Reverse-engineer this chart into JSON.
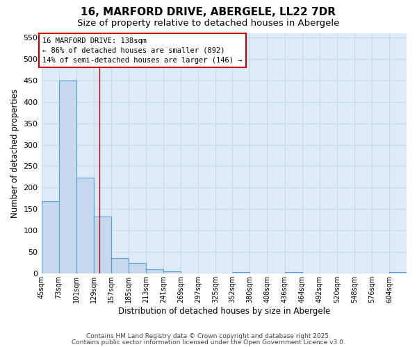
{
  "title1": "16, MARFORD DRIVE, ABERGELE, LL22 7DR",
  "title2": "Size of property relative to detached houses in Abergele",
  "xlabel": "Distribution of detached houses by size in Abergele",
  "ylabel": "Number of detached properties",
  "bins": [
    45,
    73,
    101,
    129,
    157,
    185,
    213,
    241,
    269,
    297,
    325,
    352,
    380,
    408,
    436,
    464,
    492,
    520,
    548,
    576,
    604
  ],
  "heights": [
    168,
    449,
    224,
    133,
    36,
    25,
    10,
    5,
    1,
    0,
    0,
    4,
    0,
    0,
    4,
    0,
    0,
    0,
    0,
    0,
    4
  ],
  "bar_color": "#c5d8ee",
  "bar_edge_color": "#5a9fd4",
  "grid_color": "#c8d8ec",
  "bg_color": "#ddeaf8",
  "fig_bg_color": "#ffffff",
  "red_line_x": 138,
  "annotation_line1": "16 MARFORD DRIVE: 138sqm",
  "annotation_line2": "← 86% of detached houses are smaller (892)",
  "annotation_line3": "14% of semi-detached houses are larger (146) →",
  "annotation_box_color": "#ffffff",
  "annotation_border_color": "#cc0000",
  "ylim": [
    0,
    560
  ],
  "yticks": [
    0,
    50,
    100,
    150,
    200,
    250,
    300,
    350,
    400,
    450,
    500,
    550
  ],
  "footnote1": "Contains HM Land Registry data © Crown copyright and database right 2025.",
  "footnote2": "Contains public sector information licensed under the Open Government Licence v3.0."
}
